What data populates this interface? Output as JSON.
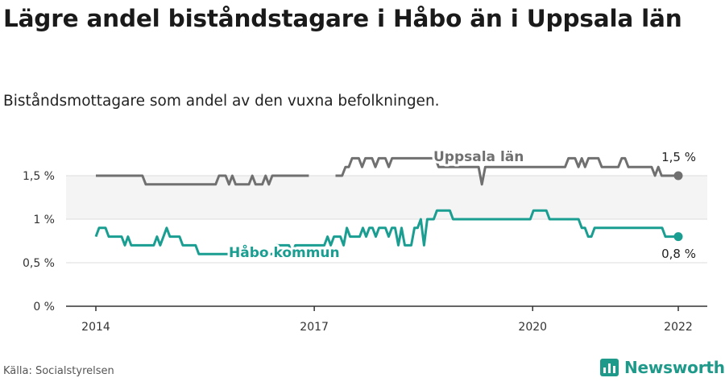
{
  "title": "Lägre andel biståndstagare i Håbo än i Uppsala län",
  "subtitle": "Biståndsmottagare som andel av den vuxna befolkningen.",
  "source": "Källa: Socialstyrelsen",
  "brand": {
    "name": "Newsworthy",
    "icon": "newsworthy-logo-icon"
  },
  "colors": {
    "uppsala": "#707070",
    "habo": "#1a9e92",
    "grid": "#dddddd",
    "band": "#f4f4f4",
    "axis": "#333333",
    "brand": "#1f9a8a"
  },
  "chart_data": {
    "type": "line",
    "title": "",
    "xlabel": "",
    "ylabel": "",
    "ylim": [
      0,
      2
    ],
    "yticks": [
      0,
      0.5,
      1,
      1.5
    ],
    "ytick_labels": [
      "0 %",
      "0,5 %",
      "1 %",
      "1,5 %"
    ],
    "xticks": [
      2014,
      2017,
      2020,
      2022
    ],
    "xtick_labels": [
      "2014",
      "2017",
      "2020",
      "2022"
    ],
    "xlim": [
      2014,
      2022
    ],
    "grid": true,
    "legend": "inline labels",
    "series": [
      {
        "name": "Uppsala län",
        "key": "uppsala",
        "end_label": "1,5 %",
        "values": [
          1.5,
          1.5,
          1.5,
          1.5,
          1.5,
          1.5,
          1.5,
          1.5,
          1.5,
          1.5,
          1.5,
          1.5,
          1.5,
          1.5,
          1.5,
          1.4,
          1.4,
          1.4,
          1.4,
          1.4,
          1.4,
          1.4,
          1.4,
          1.4,
          1.4,
          1.4,
          1.4,
          1.4,
          1.4,
          1.4,
          1.4,
          1.4,
          1.4,
          1.4,
          1.4,
          1.4,
          1.4,
          1.5,
          1.5,
          1.5,
          1.4,
          1.5,
          1.4,
          1.4,
          1.4,
          1.4,
          1.4,
          1.5,
          1.4,
          1.4,
          1.4,
          1.5,
          1.4,
          1.5,
          1.5,
          1.5,
          1.5,
          1.5,
          1.5,
          1.5,
          1.5,
          1.5,
          1.5,
          1.5,
          1.5,
          null,
          null,
          null,
          null,
          null,
          null,
          null,
          1.5,
          1.5,
          1.5,
          1.6,
          1.6,
          1.7,
          1.7,
          1.7,
          1.6,
          1.7,
          1.7,
          1.7,
          1.6,
          1.7,
          1.7,
          1.7,
          1.6,
          1.7,
          1.7,
          1.7,
          1.7,
          1.7,
          1.7,
          1.7,
          1.7,
          1.7,
          1.7,
          1.7,
          1.7,
          1.7,
          1.7,
          1.6,
          1.6,
          1.6,
          1.6,
          1.6,
          1.6,
          1.6,
          1.6,
          1.6,
          1.6,
          1.6,
          1.6,
          1.6,
          1.4,
          1.6,
          1.6,
          1.6,
          1.6,
          1.6,
          1.6,
          1.6,
          1.6,
          1.6,
          1.6,
          1.6,
          1.6,
          1.6,
          1.6,
          1.6,
          1.6,
          1.6,
          1.6,
          1.6,
          1.6,
          1.6,
          1.6,
          1.6,
          1.6,
          1.6,
          1.7,
          1.7,
          1.7,
          1.6,
          1.7,
          1.6,
          1.7,
          1.7,
          1.7,
          1.7,
          1.6,
          1.6,
          1.6,
          1.6,
          1.6,
          1.6,
          1.7,
          1.7,
          1.6,
          1.6,
          1.6,
          1.6,
          1.6,
          1.6,
          1.6,
          1.6,
          1.5,
          1.6,
          1.5,
          1.5,
          1.5,
          1.5,
          1.5,
          1.5
        ]
      },
      {
        "name": "Håbo kommun",
        "key": "habo",
        "end_label": "0,8 %",
        "values": [
          0.8,
          0.9,
          0.9,
          0.9,
          0.8,
          0.8,
          0.8,
          0.8,
          0.8,
          0.7,
          0.8,
          0.7,
          0.7,
          0.7,
          0.7,
          0.7,
          0.7,
          0.7,
          0.7,
          0.8,
          0.7,
          0.8,
          0.9,
          0.8,
          0.8,
          0.8,
          0.8,
          0.7,
          0.7,
          0.7,
          0.7,
          0.7,
          0.6,
          0.6,
          0.6,
          0.6,
          0.6,
          0.6,
          0.6,
          0.6,
          0.6,
          0.6,
          0.6,
          0.6,
          0.6,
          0.6,
          0.6,
          0.6,
          0.6,
          0.6,
          0.6,
          0.6,
          0.6,
          0.6,
          0.6,
          0.6,
          0.7,
          0.7,
          0.7,
          0.7,
          0.7,
          0.6,
          0.7,
          0.7,
          0.7,
          0.7,
          0.7,
          0.7,
          0.7,
          0.7,
          0.7,
          0.7,
          0.8,
          0.7,
          0.8,
          0.8,
          0.8,
          0.7,
          0.9,
          0.8,
          0.8,
          0.8,
          0.8,
          0.9,
          0.8,
          0.9,
          0.9,
          0.8,
          0.9,
          0.9,
          0.9,
          0.8,
          0.9,
          0.9,
          0.7,
          0.9,
          0.7,
          0.7,
          0.7,
          0.9,
          0.9,
          1.0,
          0.7,
          1.0,
          1.0,
          1.0,
          1.1,
          1.1,
          1.1,
          1.1,
          1.1,
          1.0,
          1.0,
          1.0,
          1.0,
          1.0,
          1.0,
          1.0,
          1.0,
          1.0,
          1.0,
          1.0,
          1.0,
          1.0,
          1.0,
          1.0,
          1.0,
          1.0,
          1.0,
          1.0,
          1.0,
          1.0,
          1.0,
          1.0,
          1.0,
          1.0,
          1.1,
          1.1,
          1.1,
          1.1,
          1.1,
          1.0,
          1.0,
          1.0,
          1.0,
          1.0,
          1.0,
          1.0,
          1.0,
          1.0,
          1.0,
          0.9,
          0.9,
          0.8,
          0.8,
          0.9,
          0.9,
          0.9,
          0.9,
          0.9,
          0.9,
          0.9,
          0.9,
          0.9,
          0.9,
          0.9,
          0.9,
          0.9,
          0.9,
          0.9,
          0.9,
          0.9,
          0.9,
          0.9,
          0.9,
          0.9,
          0.9,
          0.8,
          0.8,
          0.8,
          0.8,
          0.8
        ]
      }
    ],
    "annotations": [
      "Uppsala län",
      "Håbo kommun",
      "1,5 %",
      "0,8 %"
    ]
  }
}
